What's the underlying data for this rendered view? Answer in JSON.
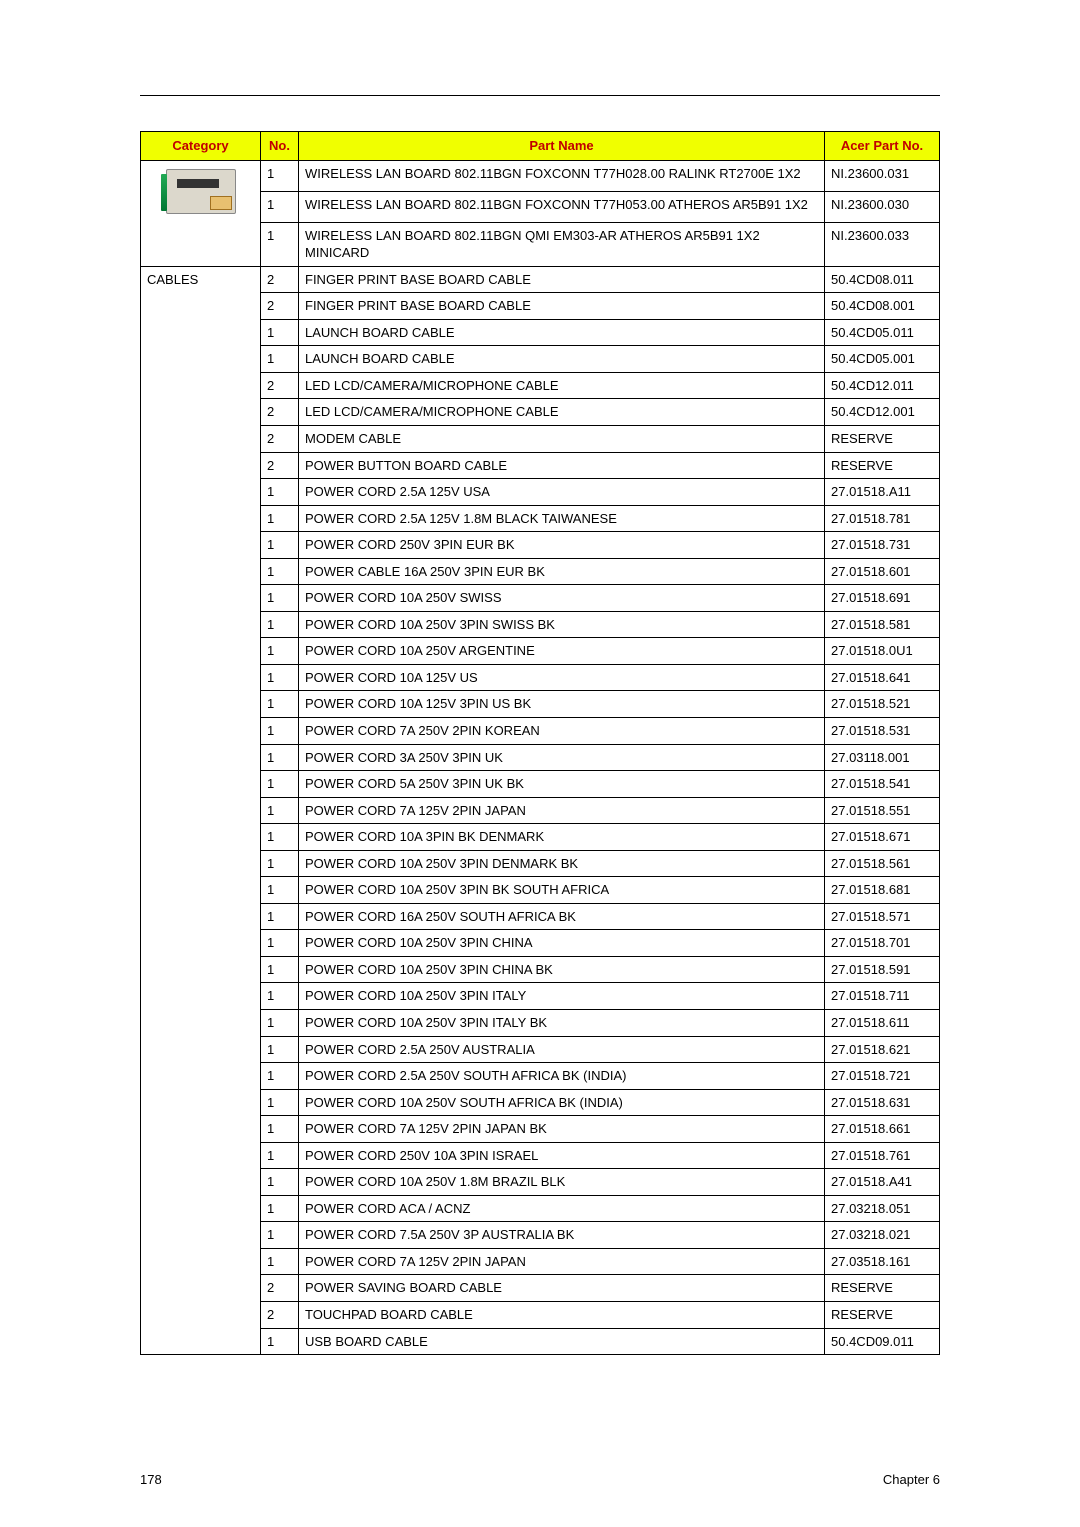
{
  "header": {
    "col_category": "Category",
    "col_no": "No.",
    "col_partname": "Part Name",
    "col_acerpart": "Acer Part No."
  },
  "categories": {
    "wlan_img_alt": "wireless-lan-card",
    "cables": "CABLES"
  },
  "rows": [
    {
      "no": "1",
      "name": "WIRELESS LAN BOARD 802.11BGN FOXCONN T77H028.00 RALINK RT2700E 1X2",
      "part": "NI.23600.031"
    },
    {
      "no": "1",
      "name": "WIRELESS LAN BOARD 802.11BGN FOXCONN T77H053.00 ATHEROS AR5B91 1X2",
      "part": "NI.23600.030"
    },
    {
      "no": "1",
      "name": "WIRELESS LAN BOARD 802.11BGN QMI EM303-AR ATHEROS AR5B91 1X2 MINICARD",
      "part": "NI.23600.033"
    },
    {
      "no": "2",
      "name": "FINGER PRINT BASE BOARD CABLE",
      "part": "50.4CD08.011"
    },
    {
      "no": "2",
      "name": "FINGER PRINT BASE BOARD CABLE",
      "part": "50.4CD08.001"
    },
    {
      "no": "1",
      "name": "LAUNCH BOARD CABLE",
      "part": "50.4CD05.011"
    },
    {
      "no": "1",
      "name": "LAUNCH BOARD CABLE",
      "part": "50.4CD05.001"
    },
    {
      "no": "2",
      "name": "LED LCD/CAMERA/MICROPHONE CABLE",
      "part": "50.4CD12.011"
    },
    {
      "no": "2",
      "name": "LED LCD/CAMERA/MICROPHONE CABLE",
      "part": "50.4CD12.001"
    },
    {
      "no": "2",
      "name": "MODEM CABLE",
      "part": "RESERVE"
    },
    {
      "no": "2",
      "name": "POWER BUTTON BOARD CABLE",
      "part": "RESERVE"
    },
    {
      "no": "1",
      "name": "POWER CORD 2.5A 125V USA",
      "part": "27.01518.A11"
    },
    {
      "no": "1",
      "name": "POWER CORD 2.5A 125V 1.8M BLACK TAIWANESE",
      "part": "27.01518.781"
    },
    {
      "no": "1",
      "name": "POWER CORD 250V 3PIN EUR BK",
      "part": "27.01518.731"
    },
    {
      "no": "1",
      "name": "POWER CABLE 16A 250V 3PIN EUR BK",
      "part": "27.01518.601"
    },
    {
      "no": "1",
      "name": "POWER CORD 10A 250V SWISS",
      "part": "27.01518.691"
    },
    {
      "no": "1",
      "name": "POWER CORD 10A 250V 3PIN SWISS BK",
      "part": "27.01518.581"
    },
    {
      "no": "1",
      "name": "POWER CORD 10A 250V ARGENTINE",
      "part": "27.01518.0U1"
    },
    {
      "no": "1",
      "name": "POWER CORD 10A 125V US",
      "part": "27.01518.641"
    },
    {
      "no": "1",
      "name": "POWER CORD 10A 125V 3PIN US BK",
      "part": "27.01518.521"
    },
    {
      "no": "1",
      "name": "POWER CORD 7A 250V 2PIN KOREAN",
      "part": "27.01518.531"
    },
    {
      "no": "1",
      "name": "POWER CORD 3A 250V 3PIN UK",
      "part": "27.03118.001"
    },
    {
      "no": "1",
      "name": "POWER CORD 5A 250V 3PIN UK BK",
      "part": "27.01518.541"
    },
    {
      "no": "1",
      "name": "POWER CORD 7A 125V 2PIN JAPAN",
      "part": "27.01518.551"
    },
    {
      "no": "1",
      "name": "POWER CORD 10A 3PIN BK DENMARK",
      "part": "27.01518.671"
    },
    {
      "no": "1",
      "name": "POWER CORD 10A 250V 3PIN DENMARK BK",
      "part": "27.01518.561"
    },
    {
      "no": "1",
      "name": "POWER CORD 10A 250V 3PIN BK SOUTH AFRICA",
      "part": "27.01518.681"
    },
    {
      "no": "1",
      "name": "POWER CORD 16A 250V SOUTH AFRICA BK",
      "part": "27.01518.571"
    },
    {
      "no": "1",
      "name": "POWER CORD 10A 250V 3PIN CHINA",
      "part": "27.01518.701"
    },
    {
      "no": "1",
      "name": "POWER CORD 10A 250V 3PIN CHINA BK",
      "part": "27.01518.591"
    },
    {
      "no": "1",
      "name": "POWER CORD 10A 250V 3PIN ITALY",
      "part": "27.01518.711"
    },
    {
      "no": "1",
      "name": "POWER CORD 10A 250V 3PIN ITALY BK",
      "part": "27.01518.611"
    },
    {
      "no": "1",
      "name": "POWER CORD 2.5A 250V AUSTRALIA",
      "part": "27.01518.621"
    },
    {
      "no": "1",
      "name": "POWER CORD 2.5A 250V SOUTH AFRICA BK (INDIA)",
      "part": "27.01518.721"
    },
    {
      "no": "1",
      "name": "POWER CORD 10A 250V SOUTH AFRICA BK (INDIA)",
      "part": "27.01518.631"
    },
    {
      "no": "1",
      "name": "POWER CORD 7A 125V 2PIN JAPAN BK",
      "part": "27.01518.661"
    },
    {
      "no": "1",
      "name": "POWER CORD 250V 10A 3PIN ISRAEL",
      "part": "27.01518.761"
    },
    {
      "no": "1",
      "name": "POWER CORD 10A 250V 1.8M BRAZIL BLK",
      "part": "27.01518.A41"
    },
    {
      "no": "1",
      "name": "POWER CORD ACA / ACNZ",
      "part": "27.03218.051"
    },
    {
      "no": "1",
      "name": "POWER CORD 7.5A 250V 3P AUSTRALIA BK",
      "part": "27.03218.021"
    },
    {
      "no": "1",
      "name": "POWER CORD 7A 125V 2PIN JAPAN",
      "part": "27.03518.161"
    },
    {
      "no": "2",
      "name": "POWER SAVING BOARD CABLE",
      "part": "RESERVE"
    },
    {
      "no": "2",
      "name": "TOUCHPAD BOARD CABLE",
      "part": "RESERVE"
    },
    {
      "no": "1",
      "name": "USB BOARD CABLE",
      "part": "50.4CD09.011"
    }
  ],
  "footer": {
    "page": "178",
    "chapter": "Chapter 6"
  }
}
